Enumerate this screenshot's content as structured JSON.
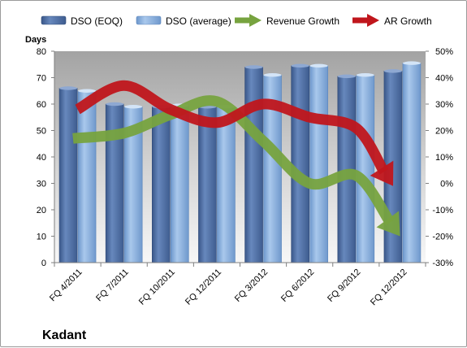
{
  "chart_data": {
    "type": "bar",
    "company": "Kadant",
    "ylabel": "Days",
    "ylim": [
      0,
      80
    ],
    "y_ticks": [
      "0",
      "10",
      "20",
      "30",
      "40",
      "50",
      "60",
      "70",
      "80"
    ],
    "y2lim": [
      -30,
      50
    ],
    "y2_ticks": [
      "-30%",
      "-20%",
      "-10%",
      "0%",
      "10%",
      "20%",
      "30%",
      "40%",
      "50%"
    ],
    "categories": [
      "FQ 4/2011",
      "FQ 7/2011",
      "FQ 10/2011",
      "FQ 12/2011",
      "FQ 3/2012",
      "FQ 6/2012",
      "FQ 9/2012",
      "FQ 12/2012"
    ],
    "series": [
      {
        "name": "DSO (EOQ)",
        "type": "bar",
        "axis": "left",
        "values": [
          66,
          60,
          59,
          59,
          74,
          74.5,
          70.5,
          72.5
        ]
      },
      {
        "name": "DSO (average)",
        "type": "bar",
        "axis": "left",
        "values": [
          65,
          59,
          59.5,
          59,
          71,
          74.5,
          71,
          75.5
        ]
      },
      {
        "name": "Revenue Growth",
        "type": "line",
        "axis": "right",
        "values": [
          17,
          19,
          26,
          31,
          16,
          0,
          3,
          -20
        ]
      },
      {
        "name": "AR Growth",
        "type": "line",
        "axis": "right",
        "values": [
          28,
          37,
          28,
          23,
          30,
          25,
          21,
          -1
        ]
      }
    ],
    "legend_position": "top",
    "grid": false,
    "colors": {
      "dso_eoq": "#4f6fa3",
      "dso_avg": "#8db3e2",
      "revenue_growth": "#77a33f",
      "ar_growth": "#c0161c",
      "plot_bg_top": "#a6a6a6",
      "plot_bg_bottom": "#f2f2f2"
    }
  }
}
